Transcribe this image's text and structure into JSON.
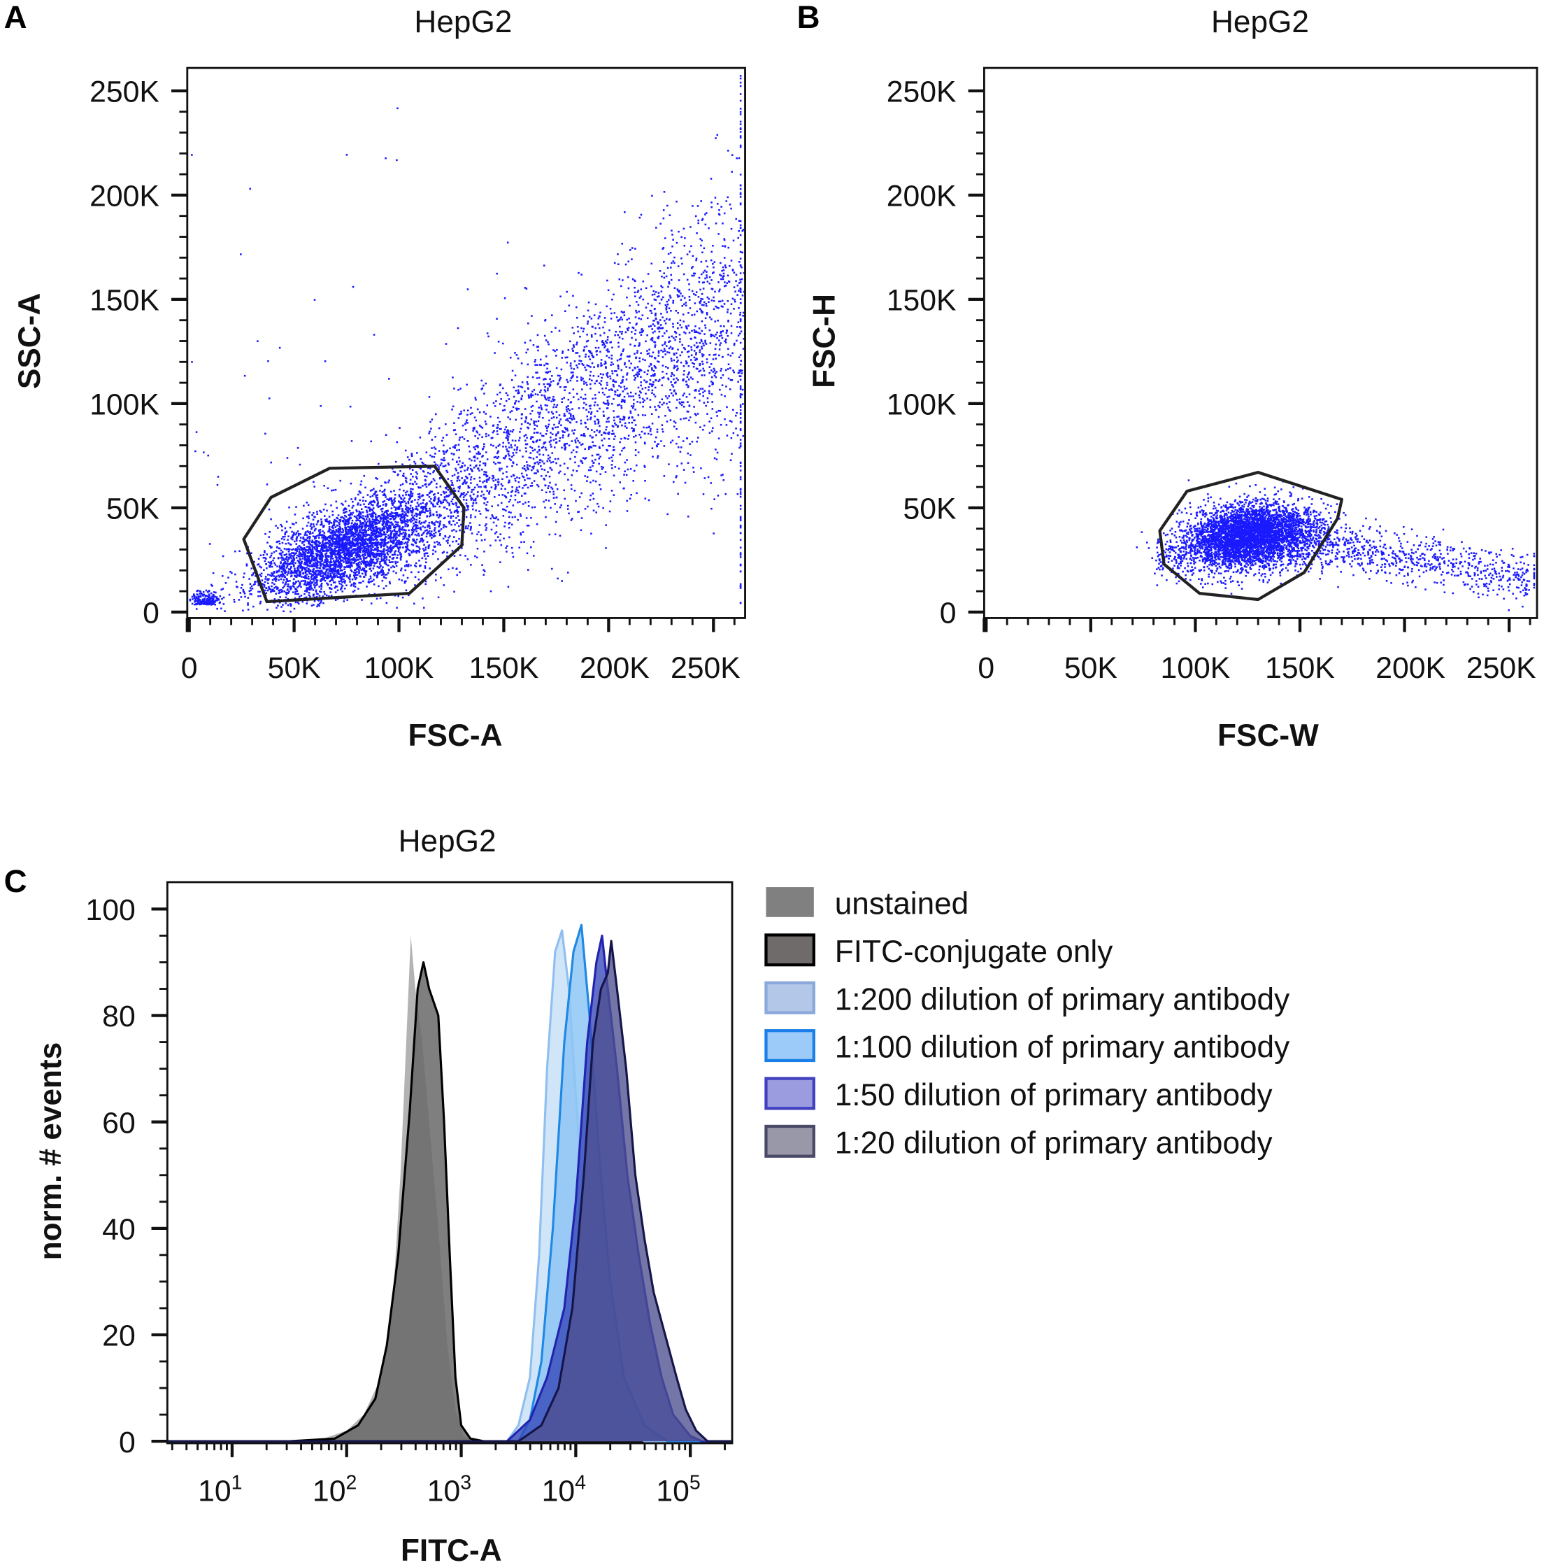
{
  "panels": {
    "a": "A",
    "b": "B",
    "c": "C"
  },
  "chart_data": [
    {
      "type": "scatter",
      "title": "HepG2",
      "xlabel": "FSC-A",
      "ylabel": "SSC-A",
      "xlim": [
        0,
        265000
      ],
      "ylim": [
        0,
        262000
      ],
      "xticks": [
        "0",
        "50K",
        "100K",
        "150K",
        "200K",
        "250K"
      ],
      "yticks": [
        "0",
        "50K",
        "100K",
        "150K",
        "200K",
        "250K"
      ],
      "xtick_values": [
        0,
        50000,
        100000,
        150000,
        200000,
        250000
      ],
      "ytick_values": [
        0,
        50000,
        100000,
        150000,
        200000,
        250000
      ],
      "point_color": "#1a1aff",
      "gate": [
        [
          26000,
          35000
        ],
        [
          39000,
          55000
        ],
        [
          67000,
          69000
        ],
        [
          117000,
          70000
        ],
        [
          131000,
          50000
        ],
        [
          130000,
          32000
        ],
        [
          105000,
          9000
        ],
        [
          37000,
          5000
        ]
      ],
      "grid": false
    },
    {
      "type": "scatter",
      "title": "HepG2",
      "xlabel": "FSC-W",
      "ylabel": "FSC-H",
      "xlim": [
        0,
        263000
      ],
      "ylim": [
        0,
        262000
      ],
      "xticks": [
        "0",
        "50K",
        "100K",
        "150K",
        "200K",
        "250K"
      ],
      "yticks": [
        "0",
        "50K",
        "100K",
        "150K",
        "200K",
        "250K"
      ],
      "xtick_values": [
        0,
        50000,
        100000,
        150000,
        200000,
        250000
      ],
      "ytick_values": [
        0,
        50000,
        100000,
        150000,
        200000,
        250000
      ],
      "point_color": "#1a1aff",
      "gate": [
        [
          83000,
          39000
        ],
        [
          96000,
          58000
        ],
        [
          130000,
          67000
        ],
        [
          170000,
          54000
        ],
        [
          168000,
          45000
        ],
        [
          152000,
          19000
        ],
        [
          130000,
          6000
        ],
        [
          102000,
          9000
        ],
        [
          85000,
          23000
        ]
      ],
      "grid": false
    },
    {
      "type": "area",
      "title": "HepG2",
      "xlabel": "FITC-A",
      "ylabel": "norm. # events",
      "xscale": "log",
      "xlim": [
        2.7,
        234000
      ],
      "ylim": [
        0,
        105
      ],
      "xticks": [
        {
          "base": "10",
          "exp": "1"
        },
        {
          "base": "10",
          "exp": "2"
        },
        {
          "base": "10",
          "exp": "3"
        },
        {
          "base": "10",
          "exp": "4"
        },
        {
          "base": "10",
          "exp": "5"
        }
      ],
      "xtick_values": [
        10,
        100,
        1000,
        10000,
        100000
      ],
      "yticks": [
        "0",
        "20",
        "40",
        "60",
        "80",
        "100"
      ],
      "ytick_values": [
        0,
        20,
        40,
        60,
        80,
        100
      ],
      "legend_position": "right",
      "grid": false,
      "series": [
        {
          "name": "unstained",
          "fill": "#a6a6a6",
          "stroke": "none",
          "swatch_fill": "#808080",
          "swatch_stroke": "#808080",
          "x": [
            20,
            63,
            100,
            141,
            200,
            251,
            295,
            331,
            363,
            398,
            457,
            525,
            631,
            759,
            891,
            1047,
            1259
          ],
          "y": [
            0,
            0.5,
            2,
            5,
            12,
            25,
            50,
            75,
            95,
            85,
            75,
            60,
            40,
            18,
            6,
            1,
            0
          ]
        },
        {
          "name": "FITC-conjugate only",
          "fill": "#686868",
          "stroke": "#000000",
          "swatch_fill": "#706b6b",
          "swatch_stroke": "#000000",
          "x": [
            32,
            79,
            126,
            178,
            224,
            282,
            355,
            417,
            468,
            525,
            631,
            708,
            794,
            891,
            1000,
            1202,
            1585
          ],
          "y": [
            0,
            0.5,
            3,
            8,
            18,
            35,
            62,
            85,
            90,
            85,
            80,
            60,
            35,
            12,
            3,
            0.5,
            0
          ]
        },
        {
          "name": "1:200 dilution of primary antibody",
          "fill": "#c9e0f8",
          "stroke": "#8fbfee",
          "swatch_fill": "#b3c7e8",
          "swatch_stroke": "#8aa8dc",
          "x": [
            2512,
            3162,
            3981,
            4786,
            5623,
            6607,
            7586,
            8710,
            10000,
            12023,
            15136,
            19953,
            28184,
            39811
          ],
          "y": [
            0,
            3,
            12,
            35,
            70,
            92,
            96,
            85,
            65,
            40,
            20,
            8,
            2,
            0
          ]
        },
        {
          "name": "1:100 dilution of primary antibody",
          "fill": "#8ec5f5",
          "stroke": "#1e88e5",
          "swatch_fill": "#9ccbfa",
          "swatch_stroke": "#1a7fe8",
          "x": [
            3162,
            3981,
            5012,
            6310,
            7943,
            9550,
            11220,
            13183,
            15849,
            19953,
            26303,
            39811,
            63096
          ],
          "y": [
            0,
            4,
            15,
            40,
            75,
            92,
            97,
            80,
            55,
            30,
            12,
            3,
            0
          ]
        },
        {
          "name": "1:50 dilution of primary antibody",
          "fill": "#3547b8",
          "stroke": "#2323b0",
          "swatch_fill": "#9b9be0",
          "swatch_stroke": "#4040c0",
          "x": [
            2512,
            3981,
            5623,
            7943,
            10000,
            12589,
            15136,
            16982,
            19055,
            22909,
            28184,
            35481,
            44668,
            56234,
            70795,
            100000,
            125893
          ],
          "y": [
            0,
            4,
            12,
            25,
            45,
            75,
            90,
            95,
            85,
            70,
            50,
            35,
            22,
            12,
            5,
            1,
            0
          ]
        },
        {
          "name": "1:20 dilution of primary antibody",
          "fill": "#4e5090",
          "stroke": "#15154a",
          "swatch_fill": "#9898a8",
          "swatch_stroke": "#4a4a68",
          "x": [
            3162,
            5012,
            7079,
            9333,
            11749,
            14125,
            16596,
            19055,
            20417,
            22909,
            27542,
            33113,
            39811,
            47863,
            60256,
            75858,
            91201,
            112202,
            141254
          ],
          "y": [
            0,
            3,
            10,
            25,
            50,
            75,
            85,
            88,
            94,
            85,
            70,
            50,
            38,
            28,
            20,
            12,
            6,
            2,
            0
          ]
        }
      ]
    }
  ]
}
